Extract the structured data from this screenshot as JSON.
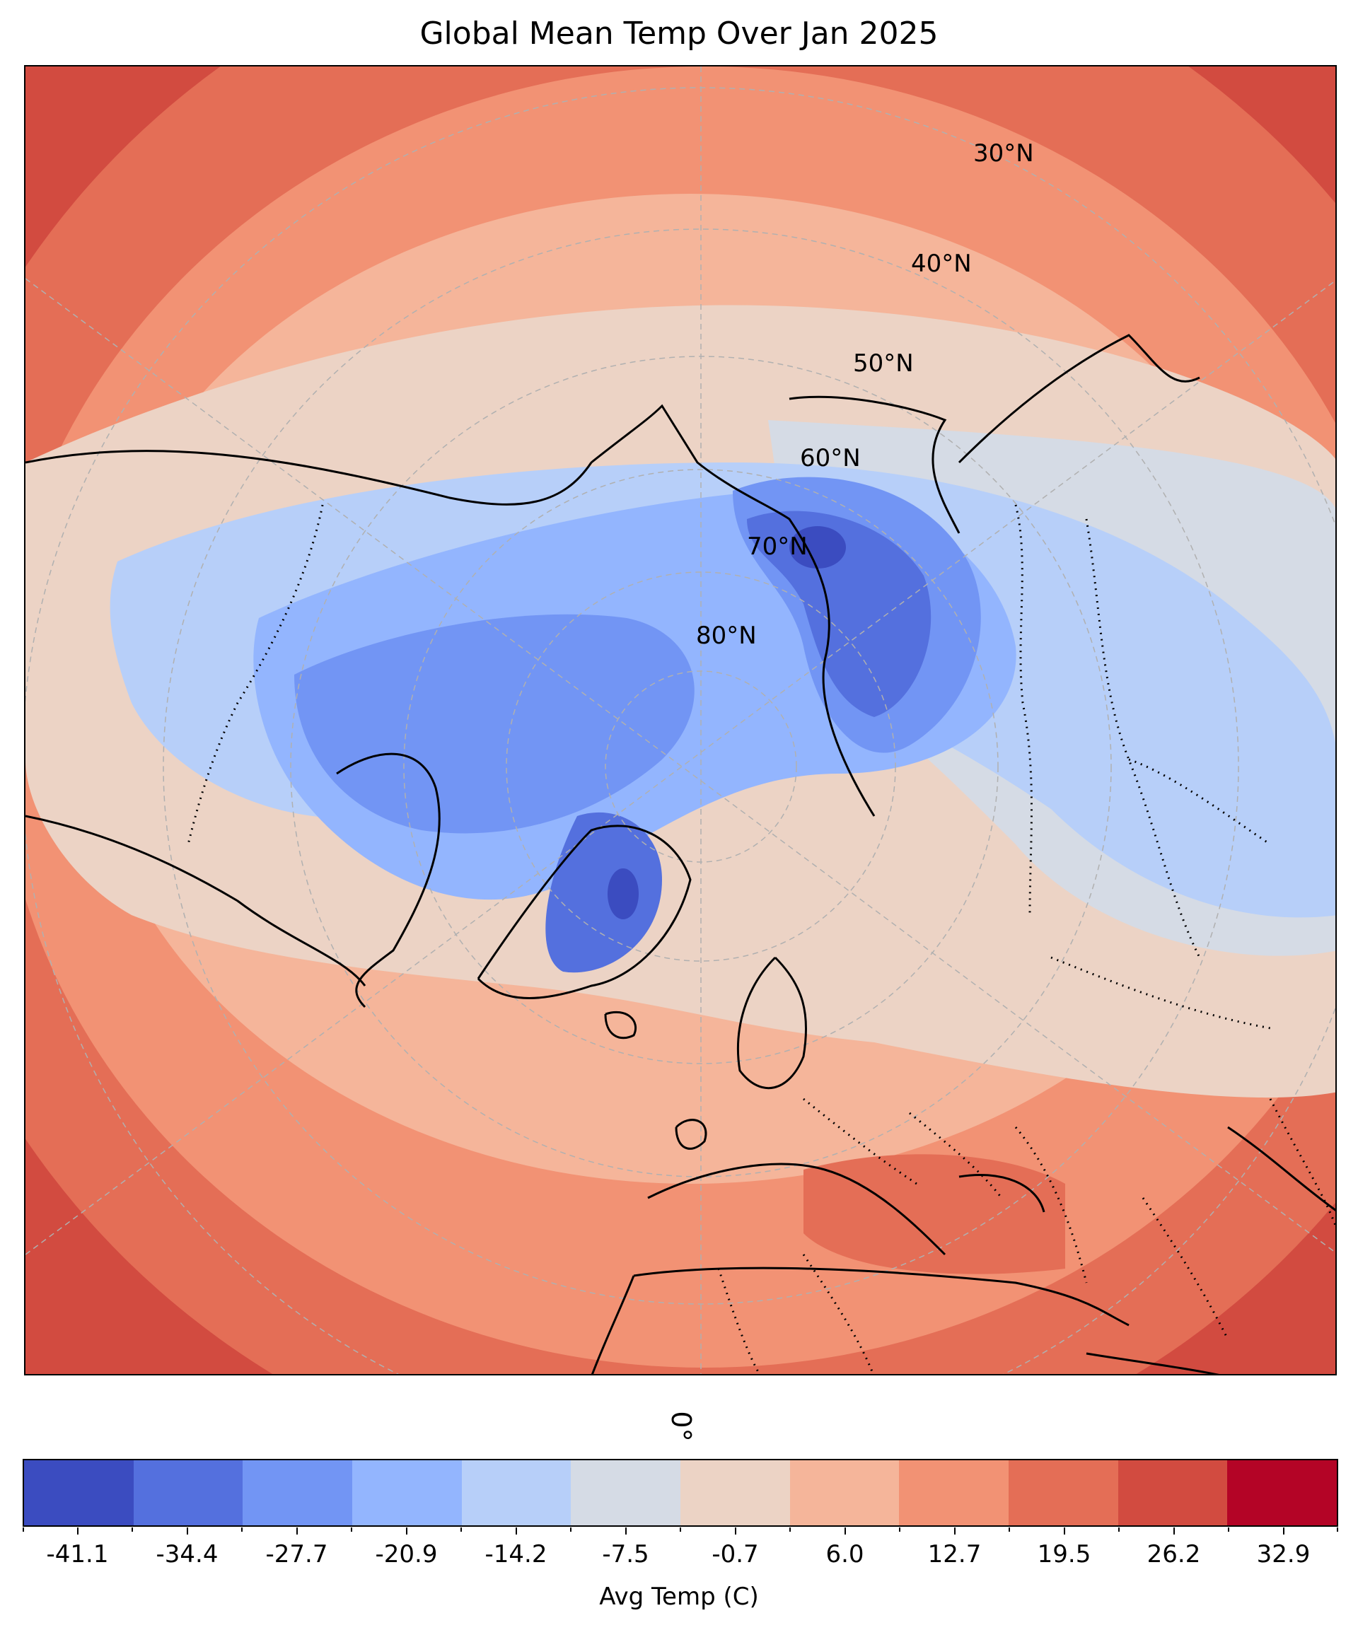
{
  "title": "Global Mean Temp Over Jan 2025",
  "projection_note_label": "0°",
  "latitude_labels": [
    "30°N",
    "40°N",
    "50°N",
    "60°N",
    "70°N",
    "80°N"
  ],
  "colorbar": {
    "label": "Avg Temp (C)",
    "tick_labels": [
      "-41.1",
      "-34.4",
      "-27.7",
      "-20.9",
      "-14.2",
      "-7.5",
      "-0.7",
      "6.0",
      "12.7",
      "19.5",
      "26.2",
      "32.9"
    ],
    "colors": [
      "#3b4cc0",
      "#5470de",
      "#7295f4",
      "#93b5fe",
      "#b7cff9",
      "#d5dbe5",
      "#ecd3c5",
      "#f5b59a",
      "#f29274",
      "#e46e56",
      "#d24b40",
      "#b40426"
    ]
  },
  "chart_data": {
    "type": "heatmap",
    "title": "Global Mean Temp Over Jan 2025",
    "colorbar_label": "Avg Temp (C)",
    "colorbar_ticks": [
      -41.1,
      -34.4,
      -27.7,
      -20.9,
      -14.2,
      -7.5,
      -0.7,
      6.0,
      12.7,
      19.5,
      26.2,
      32.9
    ],
    "colormap": "coolwarm",
    "projection": "north-polar-stereographic",
    "latitude_gridlines": [
      30,
      40,
      50,
      60,
      70,
      80
    ]
  }
}
